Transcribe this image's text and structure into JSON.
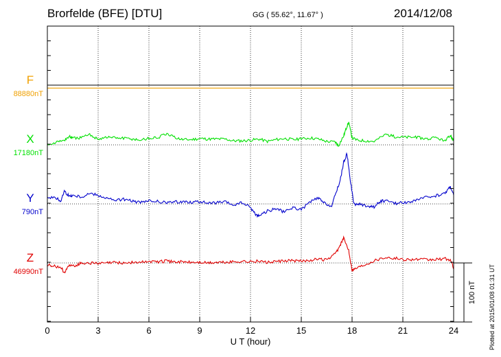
{
  "header": {
    "station": "Brorfelde (BFE)  [DTU]",
    "coords": "GG ( 55.62°,  11.67° )",
    "date": "2014/12/08"
  },
  "footer_note": "Plotted at 2015/01/08 01:31  UT",
  "scale_bar_label": "100 nT",
  "colors": {
    "F": "#f0a000",
    "X": "#00e000",
    "Y": "#0000cc",
    "Z": "#e00000"
  },
  "chart_data": {
    "type": "line",
    "xlabel": "U T (hour)",
    "xlim": [
      0,
      24
    ],
    "x_ticks": [
      0,
      3,
      6,
      9,
      12,
      15,
      18,
      21,
      24
    ],
    "y_scale_nT_per_bar": 100,
    "series": [
      {
        "name": "F",
        "baseline_label": "88880nT",
        "x": [
          0,
          6,
          12,
          18,
          24
        ],
        "y": [
          -5,
          -5,
          -5,
          -5,
          -5
        ]
      },
      {
        "name": "X",
        "baseline_label": "17180nT",
        "x": [
          0,
          0.5,
          1,
          1.3,
          1.5,
          2,
          2.5,
          3,
          3.5,
          4,
          4.5,
          5,
          5.5,
          6,
          6.5,
          7,
          7.5,
          8,
          8.5,
          9,
          9.5,
          10,
          10.5,
          11,
          11.5,
          12,
          12.5,
          13,
          13.5,
          14,
          14.5,
          15,
          15.5,
          16,
          16.5,
          17,
          17.2,
          17.5,
          17.7,
          17.8,
          18,
          18.3,
          18.8,
          19.3,
          20,
          20.5,
          21,
          21.5,
          22,
          22.5,
          23,
          23.5,
          23.8,
          24
        ],
        "y": [
          2,
          4,
          8,
          14,
          11,
          12,
          17,
          10,
          13,
          12,
          11,
          10,
          8,
          11,
          12,
          18,
          13,
          9,
          9,
          11,
          10,
          10,
          10,
          7,
          7,
          8,
          10,
          6,
          9,
          11,
          9,
          10,
          12,
          10,
          6,
          5,
          -1,
          15,
          32,
          38,
          12,
          8,
          7,
          6,
          18,
          14,
          13,
          13,
          12,
          10,
          12,
          6,
          16,
          7
        ]
      },
      {
        "name": "Y",
        "baseline_label": "790nT",
        "x": [
          0,
          0.5,
          0.8,
          1,
          1.3,
          1.5,
          2,
          2.5,
          3,
          3.5,
          4,
          4.5,
          5,
          5.5,
          6,
          6.5,
          7,
          7.5,
          8,
          8.5,
          9,
          9.5,
          10,
          10.5,
          11,
          11.5,
          12,
          12.3,
          12.5,
          13,
          13.5,
          14,
          14.5,
          15,
          15.5,
          16,
          16.3,
          16.8,
          17,
          17.3,
          17.5,
          17.7,
          17.9,
          18.1,
          18.5,
          19,
          19.3,
          19.7,
          20,
          20.5,
          21,
          21.5,
          22,
          22.5,
          23,
          23.5,
          23.8,
          24
        ],
        "y": [
          12,
          10,
          5,
          22,
          13,
          15,
          12,
          18,
          15,
          10,
          6,
          8,
          5,
          2,
          5,
          4,
          2,
          3,
          4,
          3,
          4,
          1,
          2,
          3,
          -2,
          2,
          -6,
          -18,
          -20,
          -12,
          -8,
          -14,
          -6,
          -10,
          3,
          10,
          2,
          -4,
          15,
          40,
          70,
          85,
          40,
          0,
          -1,
          -4,
          -5,
          5,
          5,
          1,
          2,
          4,
          8,
          12,
          14,
          18,
          30,
          15
        ]
      },
      {
        "name": "Z",
        "baseline_label": "46990nT",
        "x": [
          0,
          0.3,
          0.8,
          1,
          1.3,
          1.7,
          2,
          2.5,
          3,
          3.5,
          4,
          4.5,
          5,
          5.5,
          6,
          6.5,
          7,
          7.5,
          8,
          8.5,
          9,
          9.5,
          10,
          10.5,
          11,
          11.5,
          12,
          12.5,
          13,
          13.5,
          14,
          14.5,
          15,
          15.5,
          16,
          16.5,
          17,
          17.3,
          17.5,
          17.8,
          18,
          18.3,
          18.8,
          19.3,
          20,
          20.5,
          21,
          21.5,
          22,
          22.5,
          23,
          23.5,
          23.8,
          24
        ],
        "y": [
          -3,
          -5,
          -8,
          -16,
          -5,
          -4,
          0,
          0,
          -1,
          0,
          1,
          0,
          1,
          1,
          3,
          2,
          3,
          2,
          2,
          1,
          1,
          0,
          1,
          1,
          2,
          3,
          2,
          3,
          1,
          2,
          3,
          4,
          3,
          5,
          6,
          5,
          15,
          30,
          42,
          22,
          -12,
          -8,
          -2,
          4,
          10,
          8,
          6,
          6,
          6,
          5,
          6,
          7,
          5,
          -8
        ]
      }
    ],
    "title": ""
  }
}
